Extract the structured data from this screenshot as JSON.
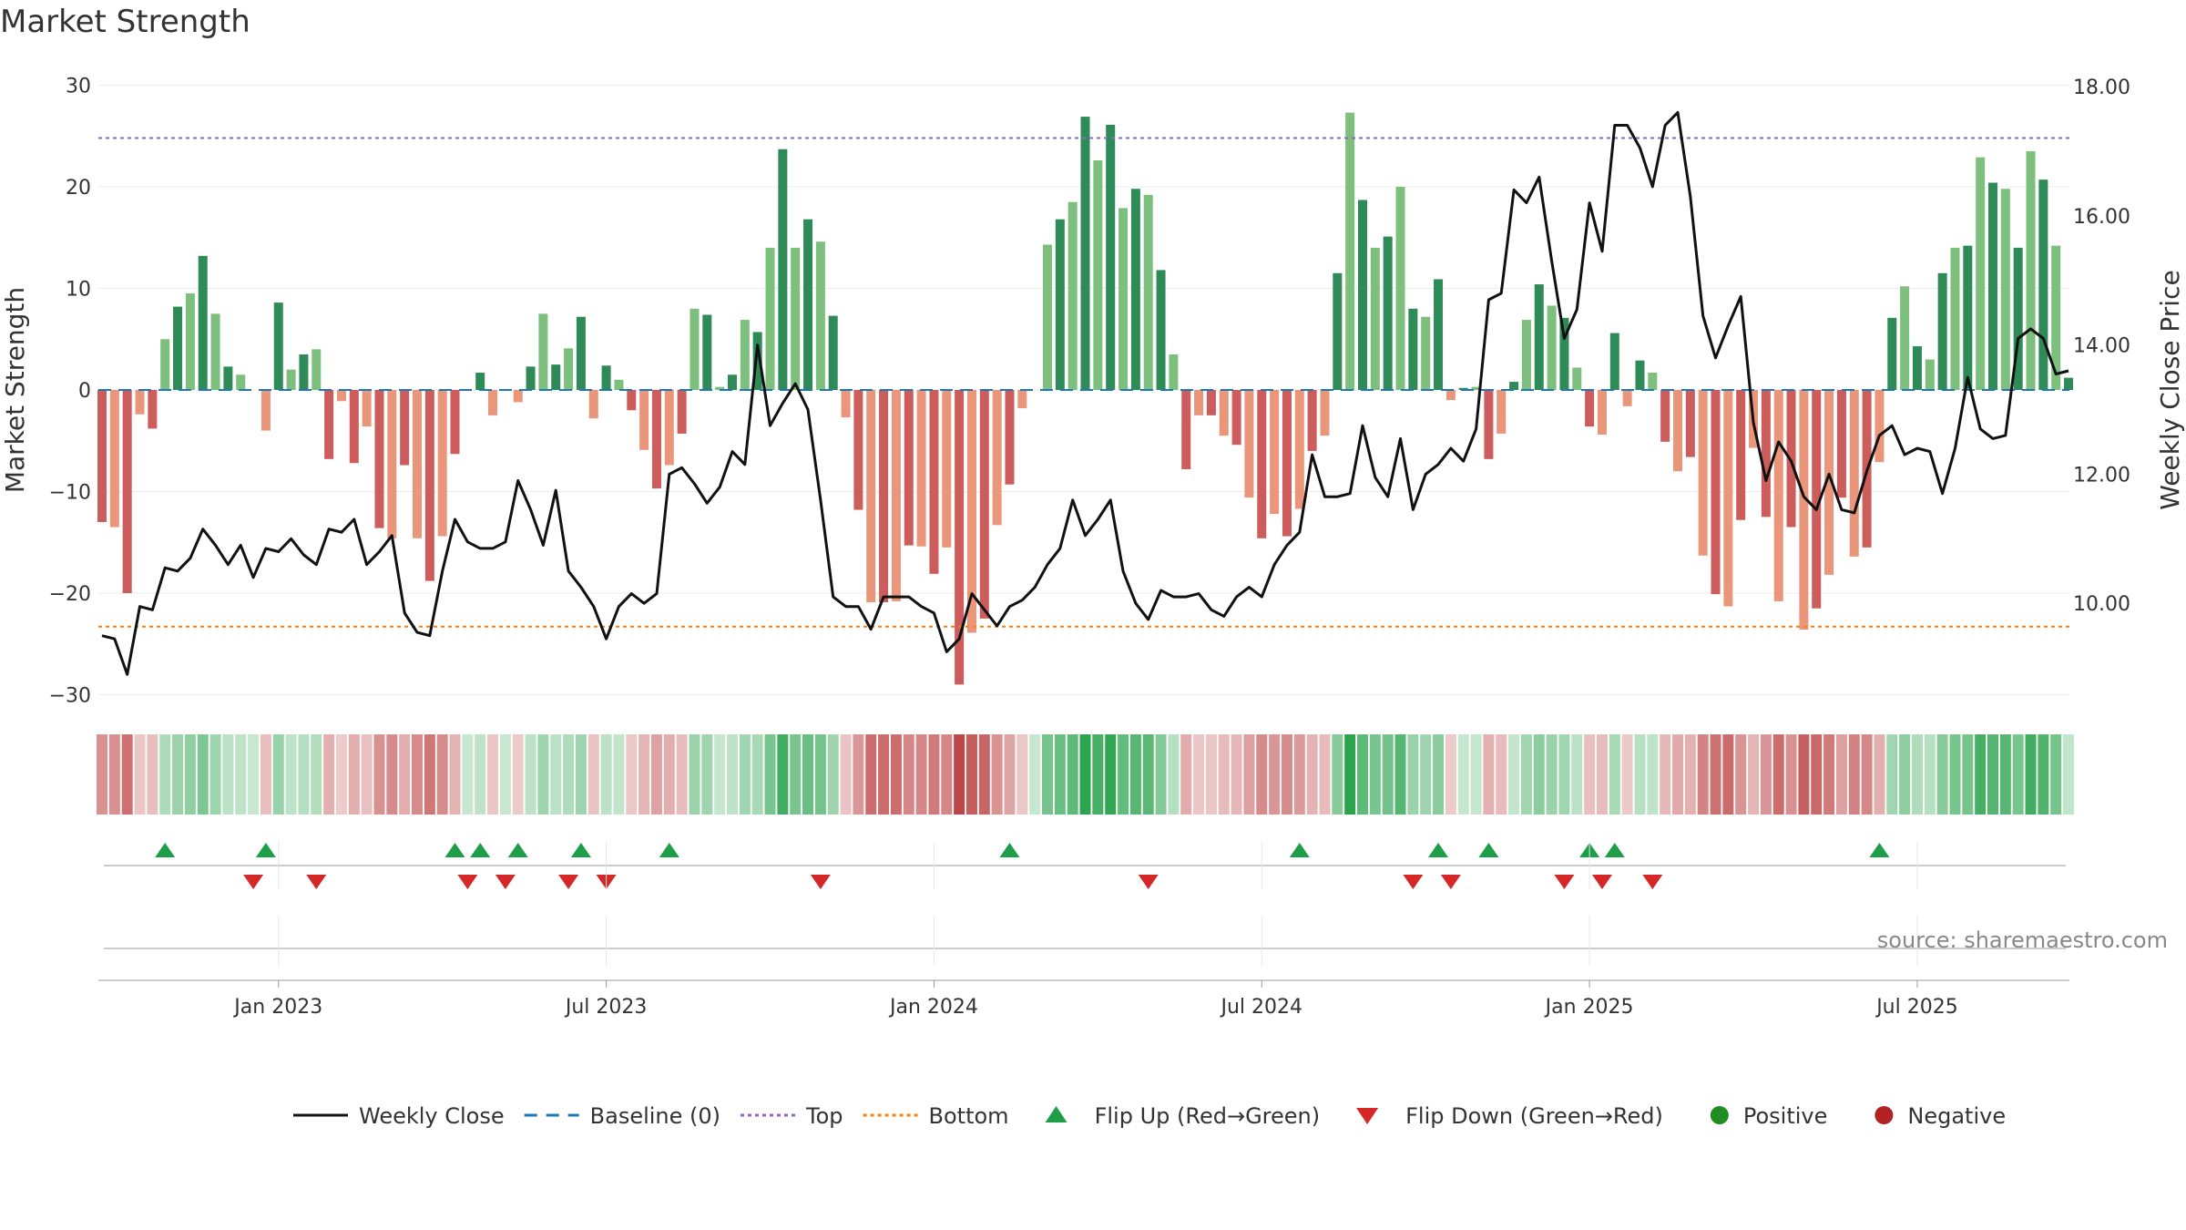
{
  "chart_data": {
    "type": "bar",
    "title": "Market Strength",
    "ylabel_left": "Market Strength",
    "ylabel_right": "Weekly Close Price",
    "ylim_left": [
      -30,
      30
    ],
    "ylim_right": [
      8.5,
      18.0
    ],
    "yticks_left": [
      30,
      20,
      10,
      0,
      -10,
      -20,
      -30
    ],
    "yticks_left_labels": [
      "30",
      "20",
      "10",
      "0",
      "−10",
      "−20",
      "−30"
    ],
    "yticks_right": [
      18,
      16,
      14,
      12,
      10
    ],
    "yticks_right_labels": [
      "18.00",
      "16.00",
      "14.00",
      "12.00",
      "10.00"
    ],
    "xticks": [
      "Jan 2023",
      "Jul 2023",
      "Jan 2024",
      "Jul 2024",
      "Jan 2025",
      "Jul 2025"
    ],
    "xtick_week_index": [
      14,
      40,
      66,
      92,
      118,
      144
    ],
    "top_level": 24.8,
    "bottom_level": -23.3,
    "source": "source: sharemaestro.com",
    "colors": {
      "pos_dark": "#2e8b57",
      "pos_light": "#7dbf7d",
      "neg_dark": "#cd5c5c",
      "neg_light": "#e9967a",
      "close_line": "#111111",
      "baseline": "#1f77b4",
      "top": "#9467bd",
      "bottom": "#ff7f0e",
      "flip_up": "#1f9e4a",
      "flip_down": "#d62728",
      "positive": "#228b22",
      "negative": "#b22222"
    },
    "strength": [
      -13,
      -13.5,
      -20,
      -2.4,
      -3.8,
      5,
      8.2,
      9.5,
      13.2,
      7.5,
      2.3,
      1.5,
      0,
      -4,
      8.6,
      2,
      3.5,
      4,
      -6.8,
      -1.1,
      -7.2,
      -3.6,
      -13.6,
      -14.6,
      -7.4,
      -14.6,
      -18.8,
      -14.4,
      -6.3,
      0,
      1.7,
      -2.5,
      0,
      -1.2,
      2.3,
      7.5,
      2.5,
      4.1,
      7.2,
      -2.8,
      2.4,
      1,
      -2,
      -5.9,
      -9.7,
      -7.4,
      -4.3,
      8,
      7.4,
      0.3,
      1.5,
      6.9,
      5.7,
      14,
      23.7,
      14,
      16.8,
      14.6,
      7.3,
      -2.7,
      -11.8,
      -20.9,
      -20.9,
      -20.8,
      -15.3,
      -15.4,
      -18.1,
      -15.5,
      -29,
      -23.9,
      -22.5,
      -13.3,
      -9.3,
      -1.8,
      0,
      14.3,
      16.8,
      18.5,
      26.9,
      22.6,
      26.1,
      17.9,
      19.8,
      19.2,
      11.8,
      3.5,
      -7.8,
      -2.5,
      -2.5,
      -4.5,
      -5.4,
      -10.6,
      -14.6,
      -12.2,
      -14.4,
      -11.7,
      -6,
      -4.5,
      11.5,
      27.3,
      18.7,
      14,
      15.1,
      20,
      8,
      7.2,
      10.9,
      -1,
      0.2,
      0.3,
      -6.8,
      -4.3,
      0.8,
      6.9,
      10.4,
      8.3,
      7.1,
      2.2,
      -3.6,
      -4.4,
      5.6,
      -1.6,
      2.9,
      1.7,
      -5.1,
      -8,
      -6.6,
      -16.3,
      -20.1,
      -21.3,
      -12.8,
      -5.7,
      -12.5,
      -20.8,
      -13.5,
      -23.6,
      -21.5,
      -18.2,
      -10.6,
      -16.4,
      -15.5,
      -7.1,
      7.1,
      10.2,
      4.3,
      3,
      11.5,
      14,
      14.2,
      22.9,
      20.4,
      19.8,
      14,
      23.5,
      20.7,
      14.2,
      1.2
    ],
    "close": [
      9.5,
      9.45,
      8.9,
      9.95,
      9.9,
      10.55,
      10.5,
      10.7,
      11.15,
      10.9,
      10.6,
      10.9,
      10.4,
      10.85,
      10.8,
      11.0,
      10.75,
      10.6,
      11.15,
      11.1,
      11.3,
      10.6,
      10.8,
      11.05,
      9.85,
      9.55,
      9.5,
      10.5,
      11.3,
      10.95,
      10.85,
      10.85,
      10.95,
      11.9,
      11.45,
      10.9,
      11.75,
      10.5,
      10.25,
      9.95,
      9.45,
      9.95,
      10.15,
      10.0,
      10.15,
      12.0,
      12.1,
      11.85,
      11.55,
      11.8,
      12.35,
      12.15,
      14.0,
      12.75,
      13.1,
      13.4,
      13.0,
      11.6,
      10.1,
      9.95,
      9.95,
      9.6,
      10.1,
      10.1,
      10.1,
      9.95,
      9.85,
      9.25,
      9.45,
      10.15,
      9.9,
      9.65,
      9.95,
      10.05,
      10.25,
      10.6,
      10.85,
      11.6,
      11.05,
      11.3,
      11.6,
      10.5,
      10.0,
      9.75,
      10.2,
      10.1,
      10.1,
      10.15,
      9.9,
      9.8,
      10.1,
      10.25,
      10.1,
      10.6,
      10.9,
      11.1,
      12.3,
      11.65,
      11.65,
      11.7,
      12.75,
      11.95,
      11.65,
      12.55,
      11.45,
      12.0,
      12.15,
      12.4,
      12.2,
      12.7,
      14.7,
      14.8,
      16.4,
      16.2,
      16.6,
      15.3,
      14.1,
      14.55,
      16.2,
      15.45,
      17.4,
      17.4,
      17.05,
      16.45,
      17.4,
      17.6,
      16.3,
      14.45,
      13.8,
      14.3,
      14.75,
      12.8,
      11.9,
      12.5,
      12.2,
      11.65,
      11.45,
      12.0,
      11.45,
      11.4,
      12.05,
      12.6,
      12.75,
      12.3,
      12.4,
      12.35,
      11.7,
      12.4,
      13.5,
      12.7,
      12.55,
      12.6,
      14.1,
      14.25,
      14.1,
      13.55,
      13.6
    ],
    "flip_up": [
      5,
      13,
      28,
      30,
      33,
      38,
      45,
      72,
      95,
      106,
      110,
      118,
      120,
      141
    ],
    "flip_down": [
      12,
      17,
      29,
      32,
      37,
      40,
      57,
      83,
      104,
      107,
      116,
      119,
      123
    ],
    "legend": [
      {
        "label": "Weekly Close",
        "kind": "solid-line",
        "color": "#111111"
      },
      {
        "label": "Baseline (0)",
        "kind": "dashed-line",
        "color": "#1f77b4"
      },
      {
        "label": "Top",
        "kind": "dotted-line",
        "color": "#9467bd"
      },
      {
        "label": "Bottom",
        "kind": "dotted-line",
        "color": "#ff7f0e"
      },
      {
        "label": "Flip Up (Red→Green)",
        "kind": "triangle-up",
        "color": "#1f9e4a"
      },
      {
        "label": "Flip Down (Green→Red)",
        "kind": "triangle-down",
        "color": "#d62728"
      },
      {
        "label": "Positive",
        "kind": "circle",
        "color": "#228b22"
      },
      {
        "label": "Negative",
        "kind": "circle",
        "color": "#b22222"
      }
    ]
  }
}
